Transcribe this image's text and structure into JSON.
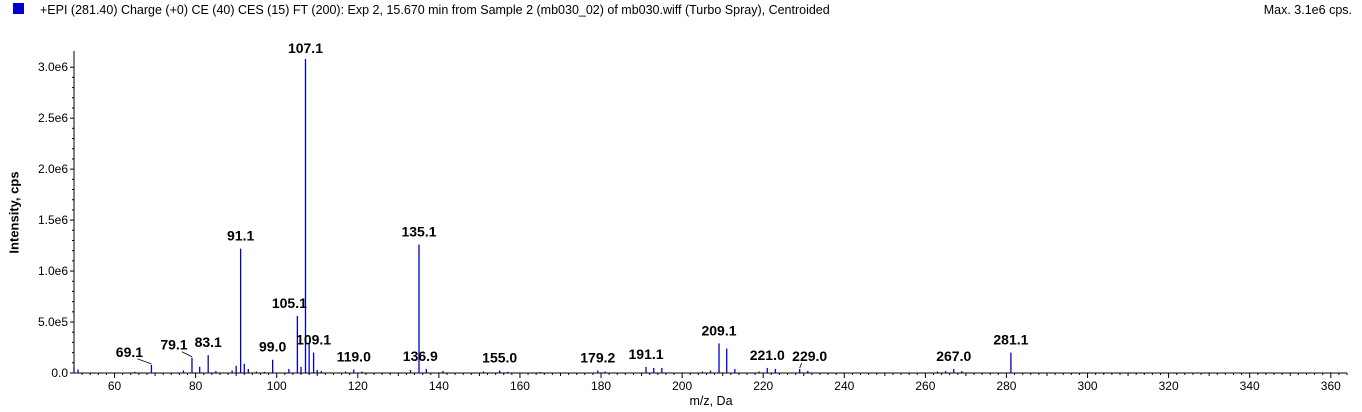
{
  "header": {
    "title": "+EPI (281.40) Charge (+0) CE (40) CES (15) FT (200): Exp 2, 15.670 min from Sample 2 (mb030_02) of mb030.wiff (Turbo Spray), Centroided",
    "max_label": "Max. 3.1e6 cps."
  },
  "colors": {
    "series": "#0000cc",
    "axis": "#000000",
    "background": "#ffffff"
  },
  "chart_data": {
    "type": "bar",
    "title": "+EPI (281.40) Charge (+0) CE (40) CES (15) FT (200): Exp 2, 15.670 min from Sample 2 (mb030_02) of mb030.wiff (Turbo Spray), Centroided",
    "xlabel": "m/z, Da",
    "ylabel": "Intensity, cps",
    "xlim": [
      50,
      364
    ],
    "ylim": [
      0,
      3100000.0
    ],
    "grid": false,
    "x_ticks": [
      60,
      80,
      100,
      120,
      140,
      160,
      180,
      200,
      220,
      240,
      260,
      280,
      300,
      320,
      340,
      360
    ],
    "y_ticks": [
      {
        "value": 0,
        "label": "0.0"
      },
      {
        "value": 500000,
        "label": "5.0e5"
      },
      {
        "value": 1000000,
        "label": "1.0e6"
      },
      {
        "value": 1500000,
        "label": "1.5e6"
      },
      {
        "value": 2000000,
        "label": "2.0e6"
      },
      {
        "value": 2500000,
        "label": "2.5e6"
      },
      {
        "value": 3000000,
        "label": "3.0e6"
      }
    ],
    "peaks": [
      {
        "mz": 50.0,
        "intensity": 60000
      },
      {
        "mz": 51.0,
        "intensity": 35000
      },
      {
        "mz": 65.0,
        "intensity": 12000
      },
      {
        "mz": 69.1,
        "intensity": 80000,
        "label": "69.1"
      },
      {
        "mz": 77.0,
        "intensity": 25000
      },
      {
        "mz": 79.1,
        "intensity": 150000,
        "label": "79.1"
      },
      {
        "mz": 81.0,
        "intensity": 60000
      },
      {
        "mz": 83.1,
        "intensity": 175000,
        "label": "83.1"
      },
      {
        "mz": 85.0,
        "intensity": 20000
      },
      {
        "mz": 89.0,
        "intensity": 25000
      },
      {
        "mz": 90.0,
        "intensity": 70000
      },
      {
        "mz": 91.1,
        "intensity": 1220000,
        "label": "91.1"
      },
      {
        "mz": 92.0,
        "intensity": 90000
      },
      {
        "mz": 93.0,
        "intensity": 40000
      },
      {
        "mz": 95.0,
        "intensity": 15000
      },
      {
        "mz": 97.0,
        "intensity": 12000
      },
      {
        "mz": 99.0,
        "intensity": 130000,
        "label": "99.0"
      },
      {
        "mz": 103.0,
        "intensity": 40000
      },
      {
        "mz": 105.1,
        "intensity": 560000,
        "label": "105.1"
      },
      {
        "mz": 106.0,
        "intensity": 60000
      },
      {
        "mz": 107.1,
        "intensity": 3080000,
        "label": "107.1"
      },
      {
        "mz": 108.0,
        "intensity": 300000
      },
      {
        "mz": 109.1,
        "intensity": 200000,
        "label": "109.1"
      },
      {
        "mz": 110.0,
        "intensity": 30000
      },
      {
        "mz": 111.0,
        "intensity": 20000
      },
      {
        "mz": 117.0,
        "intensity": 15000
      },
      {
        "mz": 119.0,
        "intensity": 35000,
        "label": "119.0"
      },
      {
        "mz": 121.0,
        "intensity": 15000
      },
      {
        "mz": 133.0,
        "intensity": 30000
      },
      {
        "mz": 135.1,
        "intensity": 1260000,
        "label": "135.1"
      },
      {
        "mz": 136.9,
        "intensity": 40000,
        "label": "136.9"
      },
      {
        "mz": 141.0,
        "intensity": 20000
      },
      {
        "mz": 151.0,
        "intensity": 15000
      },
      {
        "mz": 155.0,
        "intensity": 25000,
        "label": "155.0"
      },
      {
        "mz": 157.0,
        "intensity": 12000
      },
      {
        "mz": 165.0,
        "intensity": 10000
      },
      {
        "mz": 179.2,
        "intensity": 25000,
        "label": "179.2"
      },
      {
        "mz": 181.0,
        "intensity": 15000
      },
      {
        "mz": 191.1,
        "intensity": 60000,
        "label": "191.1"
      },
      {
        "mz": 193.0,
        "intensity": 50000
      },
      {
        "mz": 195.0,
        "intensity": 50000
      },
      {
        "mz": 205.0,
        "intensity": 15000
      },
      {
        "mz": 207.0,
        "intensity": 25000
      },
      {
        "mz": 209.1,
        "intensity": 290000,
        "label": "209.1"
      },
      {
        "mz": 211.0,
        "intensity": 240000
      },
      {
        "mz": 213.0,
        "intensity": 40000
      },
      {
        "mz": 219.0,
        "intensity": 15000
      },
      {
        "mz": 221.0,
        "intensity": 50000,
        "label": "221.0"
      },
      {
        "mz": 223.0,
        "intensity": 40000
      },
      {
        "mz": 229.0,
        "intensity": 40000,
        "label": "229.0"
      },
      {
        "mz": 231.0,
        "intensity": 20000
      },
      {
        "mz": 263.0,
        "intensity": 15000
      },
      {
        "mz": 265.0,
        "intensity": 20000
      },
      {
        "mz": 267.0,
        "intensity": 40000,
        "label": "267.0"
      },
      {
        "mz": 269.0,
        "intensity": 20000
      },
      {
        "mz": 281.1,
        "intensity": 200000,
        "label": "281.1"
      }
    ]
  }
}
